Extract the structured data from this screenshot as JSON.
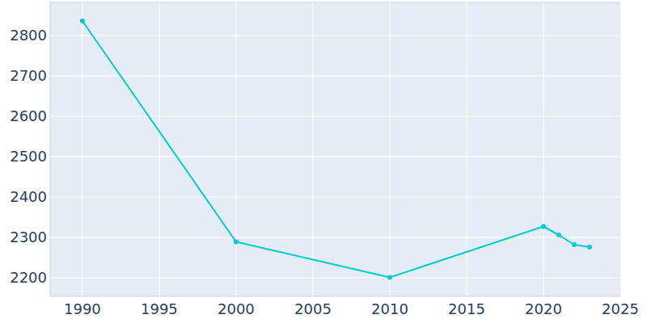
{
  "chart_data": {
    "type": "line",
    "x": [
      1990,
      2000,
      2010,
      2020,
      2021,
      2022,
      2023
    ],
    "values": [
      2836,
      2289,
      2201,
      2327,
      2306,
      2282,
      2276
    ],
    "color": "#00ced1",
    "marker": "circle",
    "xlim": [
      1987.9,
      2025
    ],
    "xticks": [
      1990,
      1995,
      2000,
      2005,
      2010,
      2015,
      2020,
      2025
    ],
    "ylim": [
      2154,
      2882
    ],
    "yticks": [
      2200,
      2300,
      2400,
      2500,
      2600,
      2700,
      2800
    ],
    "grid": true
  }
}
